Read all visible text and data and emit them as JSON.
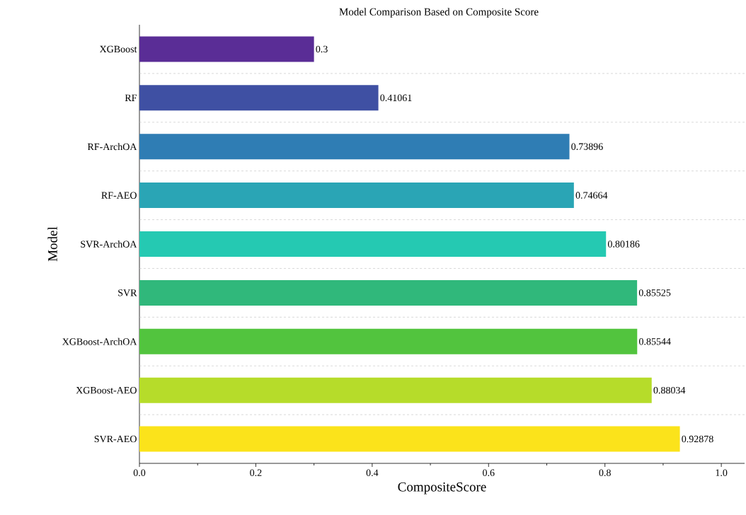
{
  "chart_data": {
    "type": "bar",
    "orientation": "horizontal",
    "title": "Model Comparison Based on Composite Score",
    "xlabel": "CompositeScore",
    "ylabel": "Model",
    "categories": [
      "XGBoost",
      "RF",
      "RF-ArchOA",
      "RF-AEO",
      "SVR-ArchOA",
      "SVR",
      "XGBoost-ArchOA",
      "XGBoost-AEO",
      "SVR-AEO"
    ],
    "values": [
      0.3,
      0.41061,
      0.73896,
      0.74664,
      0.80186,
      0.85525,
      0.85544,
      0.88034,
      0.92878
    ],
    "colors": [
      "#5a2d96",
      "#3f50a3",
      "#2f7db4",
      "#2aa5b5",
      "#25c9b2",
      "#30b87b",
      "#52c43e",
      "#b6dc2a",
      "#fbe31b"
    ],
    "data_labels": true,
    "grid": "y",
    "xlim": [
      0,
      1.04
    ],
    "xticks": [
      {
        "value": 0,
        "label": "0.0"
      },
      {
        "value": 0.1,
        "label": null
      },
      0.2,
      {
        "value": 0.3,
        "label": null
      },
      0.4,
      {
        "value": 0.5,
        "label": null
      },
      0.6,
      {
        "value": 0.7,
        "label": null
      },
      0.8,
      {
        "value": 0.9,
        "label": null
      },
      {
        "value": 1,
        "label": "1.0"
      }
    ]
  }
}
